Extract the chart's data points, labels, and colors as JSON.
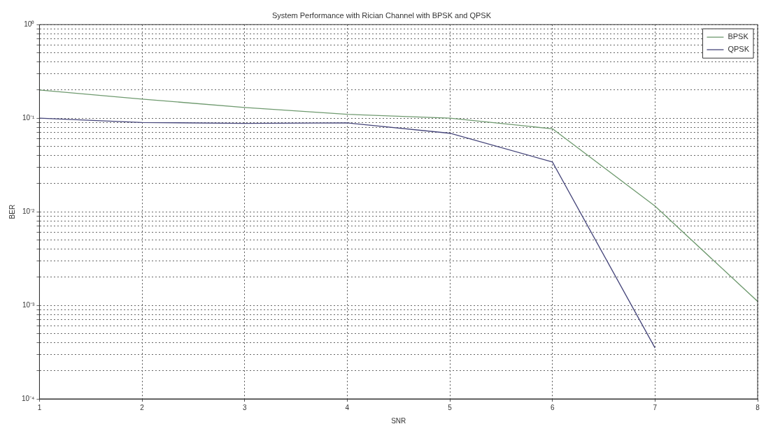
{
  "chart_data": {
    "type": "line",
    "title": "System Performance with Rician Channel with BPSK and QPSK",
    "xlabel": "SNR",
    "ylabel": "BER",
    "x": [
      1,
      2,
      3,
      4,
      5,
      6,
      7,
      8
    ],
    "series": [
      {
        "name": "BPSK",
        "color": "#6f9a6f",
        "values": [
          0.2,
          0.16,
          0.13,
          0.11,
          0.1,
          0.077,
          0.0115,
          0.0011
        ]
      },
      {
        "name": "QPSK",
        "color": "#45457a",
        "values": [
          0.1,
          0.09,
          0.088,
          0.089,
          0.069,
          0.034,
          0.00035,
          null
        ]
      }
    ],
    "xlim": [
      1,
      8
    ],
    "xticks": [
      1,
      2,
      3,
      4,
      5,
      6,
      7,
      8
    ],
    "ylim": [
      0.0001,
      1
    ],
    "yticks": [
      {
        "value": 0.0001,
        "label": "10⁻⁴"
      },
      {
        "value": 0.0002,
        "label": null
      },
      {
        "value": 0.0003,
        "label": null
      },
      {
        "value": 0.0004,
        "label": null
      },
      {
        "value": 0.0005,
        "label": null
      },
      {
        "value": 0.0006,
        "label": null
      },
      {
        "value": 0.0007,
        "label": null
      },
      {
        "value": 0.0008,
        "label": null
      },
      {
        "value": 0.0009,
        "label": null
      },
      {
        "value": 0.001,
        "label": "10⁻³"
      },
      {
        "value": 0.002,
        "label": null
      },
      {
        "value": 0.003,
        "label": null
      },
      {
        "value": 0.004,
        "label": null
      },
      {
        "value": 0.005,
        "label": null
      },
      {
        "value": 0.006,
        "label": null
      },
      {
        "value": 0.007,
        "label": null
      },
      {
        "value": 0.008,
        "label": null
      },
      {
        "value": 0.009,
        "label": null
      },
      {
        "value": 0.01,
        "label": "10⁻²"
      },
      {
        "value": 0.02,
        "label": null
      },
      {
        "value": 0.03,
        "label": null
      },
      {
        "value": 0.04,
        "label": null
      },
      {
        "value": 0.05,
        "label": null
      },
      {
        "value": 0.06,
        "label": null
      },
      {
        "value": 0.07,
        "label": null
      },
      {
        "value": 0.08,
        "label": null
      },
      {
        "value": 0.09,
        "label": null
      },
      {
        "value": 0.1,
        "label": "10⁻¹"
      },
      {
        "value": 0.2,
        "label": null
      },
      {
        "value": 0.3,
        "label": null
      },
      {
        "value": 0.4,
        "label": null
      },
      {
        "value": 0.5,
        "label": null
      },
      {
        "value": 0.6,
        "label": null
      },
      {
        "value": 0.7,
        "label": null
      },
      {
        "value": 0.8,
        "label": null
      },
      {
        "value": 0.9,
        "label": null
      },
      {
        "value": 1,
        "label": "10⁰"
      }
    ],
    "log": "y",
    "grid": true,
    "legend": "top right",
    "marker": "none",
    "line_style": "solid"
  }
}
